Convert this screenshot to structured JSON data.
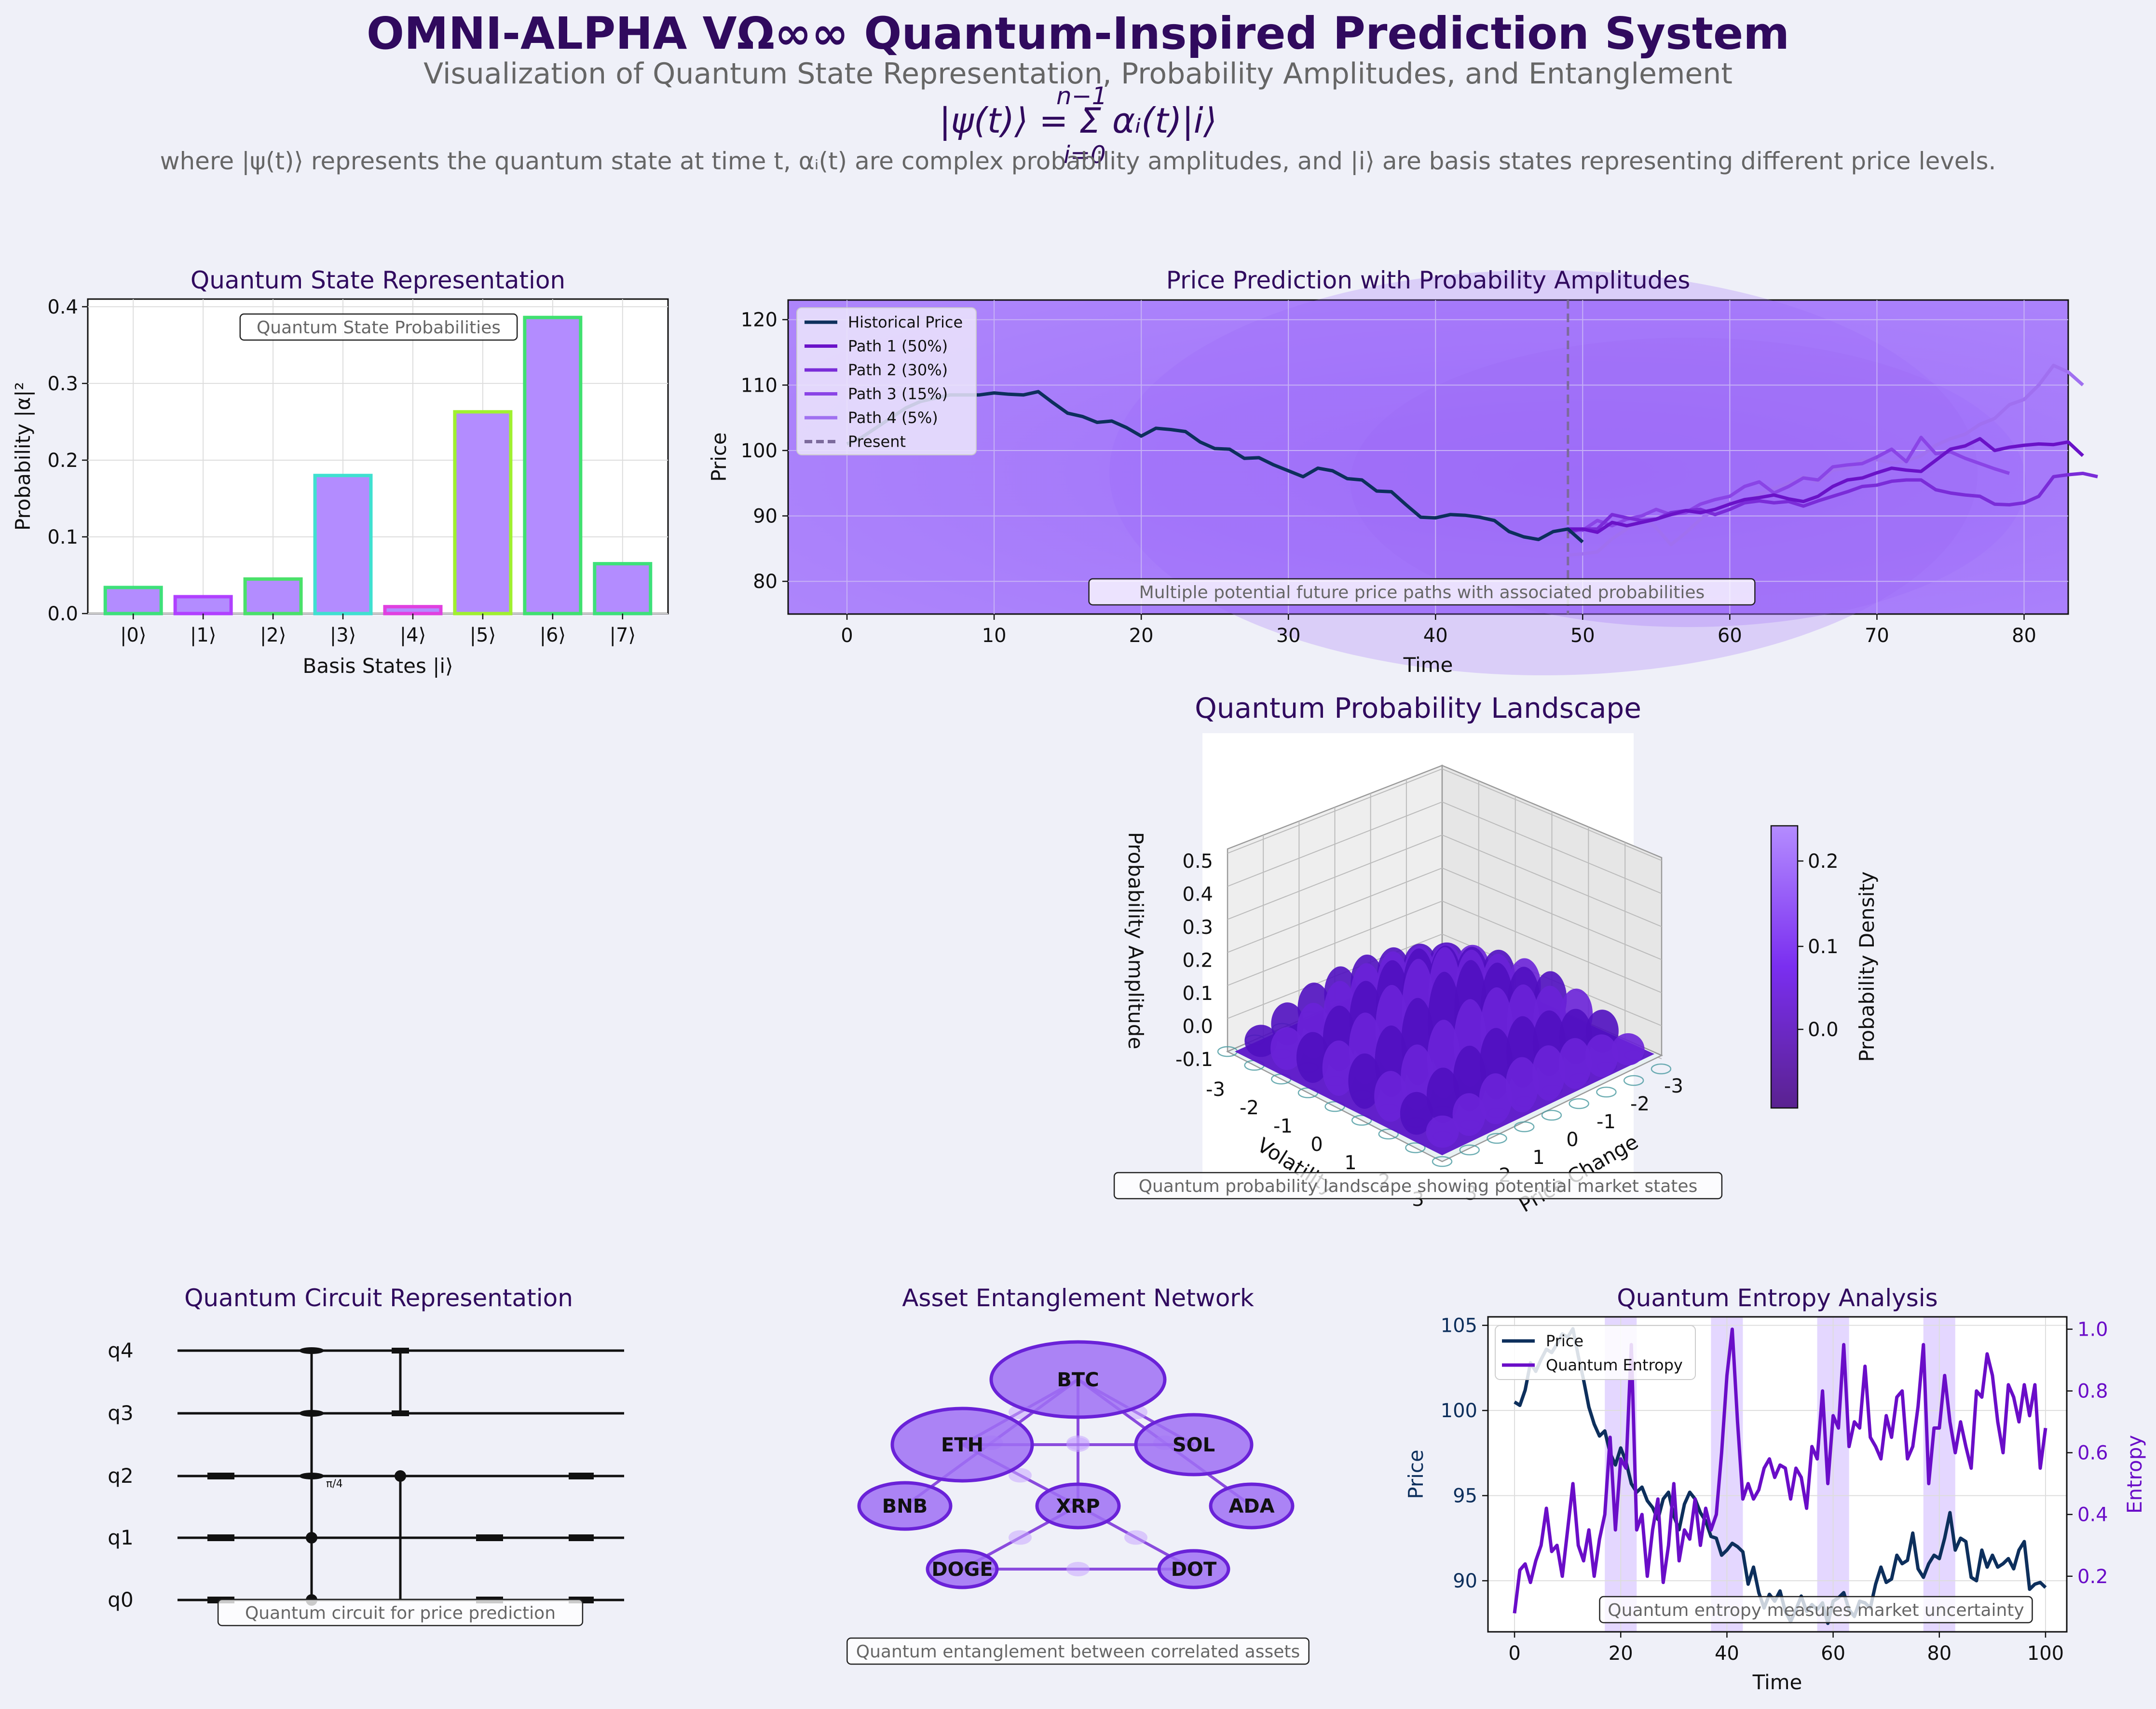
{
  "header": {
    "title": "OMNI-ALPHA VΩ∞∞ Quantum-Inspired Prediction System",
    "subtitle": "Visualization of Quantum State Representation, Probability Amplitudes, and Entanglement",
    "equation": "|ψ(t)⟩ = Σ αᵢ(t)|i⟩",
    "equation_upper": "n−1",
    "equation_lower": "i=0",
    "description": "where |ψ(t)⟩ represents the quantum state at time t, αᵢ(t) are complex probability amplitudes, and |i⟩ are basis states representing different price levels."
  },
  "colors": {
    "title": "#300a5e",
    "grey_text": "#666666",
    "bar_fill": "#b38cff",
    "purple": "#6a0dc8",
    "historical": "#0d2f5c",
    "surface": "#5b14c8",
    "background": "#eff0f8"
  },
  "chart_data": [
    {
      "id": "state",
      "type": "bar",
      "title": "Quantum State Representation",
      "xlabel": "Basis States |i⟩",
      "ylabel": "Probability |α|²",
      "categories": [
        "|0⟩",
        "|1⟩",
        "|2⟩",
        "|3⟩",
        "|4⟩",
        "|5⟩",
        "|6⟩",
        "|7⟩"
      ],
      "values": [
        0.034,
        0.022,
        0.045,
        0.18,
        0.009,
        0.263,
        0.386,
        0.065
      ],
      "edge_colors": [
        "#3ee07a",
        "#b040ff",
        "#4ae06a",
        "#40e0d0",
        "#e040e0",
        "#a0f030",
        "#40e070",
        "#3ee07a"
      ],
      "ylim": [
        0,
        0.41
      ],
      "yticks": [
        "0.0",
        "0.1",
        "0.2",
        "0.3",
        "0.4"
      ],
      "annotation": "Quantum State Probabilities",
      "grid": true
    },
    {
      "id": "prediction",
      "type": "line",
      "title": "Price Prediction with Probability Amplitudes",
      "xlabel": "Time",
      "ylabel": "Price",
      "xlim": [
        -4,
        83
      ],
      "ylim": [
        75,
        123
      ],
      "xticks": [
        "0",
        "10",
        "20",
        "30",
        "40",
        "50",
        "60",
        "70",
        "80"
      ],
      "yticks": [
        "80",
        "90",
        "100",
        "110",
        "120"
      ],
      "present": 49,
      "annotation": "Multiple potential future price paths with associated probabilities",
      "legend": [
        "Historical Price",
        "Path 1 (50%)",
        "Path 2 (30%)",
        "Path 3 (15%)",
        "Path 4 (5%)",
        "Present"
      ],
      "legend_position": "upper-left",
      "series": [
        {
          "name": "Historical Price",
          "color": "#0d2f5c",
          "x0": 0,
          "values": [
            101,
            102,
            103.5,
            105,
            106.5,
            107.5,
            108,
            108.5,
            108.5,
            108.5,
            108.8,
            108.6,
            108.5,
            109,
            107.3,
            105.7,
            105.2,
            104.3,
            104.5,
            103.5,
            102.2,
            103.4,
            103.2,
            102.9,
            101.3,
            100.3,
            100.2,
            98.8,
            98.9,
            97.8,
            96.9,
            96,
            97.3,
            96.9,
            95.7,
            95.5,
            93.8,
            93.7,
            91.7,
            89.8,
            89.7,
            90.2,
            90.1,
            89.8,
            89.3,
            87.6,
            86.8,
            86.4,
            87.6,
            88,
            86
          ]
        },
        {
          "name": "Path 1 (50%)",
          "color": "#6a12c8",
          "x0": 49,
          "values": [
            88,
            88,
            87.5,
            89,
            88.5,
            89,
            89.5,
            90.2,
            90.8,
            90.5,
            91,
            91.8,
            92.5,
            92.8,
            93.2,
            92.6,
            92.2,
            93,
            94.5,
            95.5,
            95.8,
            96.6,
            97.3,
            97,
            96.8,
            98.5,
            100.2,
            100.7,
            101.8,
            100,
            100.5,
            100.8,
            101,
            100.9,
            101.3,
            99.2
          ]
        },
        {
          "name": "Path 2 (30%)",
          "color": "#7a2cd8",
          "x0": 49,
          "values": [
            87.5,
            88,
            88,
            90.2,
            89.7,
            89.3,
            89.5,
            90.5,
            90.8,
            91,
            90.2,
            91,
            92,
            92.3,
            92,
            92.2,
            91.5,
            92.3,
            93,
            93.7,
            94.5,
            94.7,
            95.3,
            95.5,
            95.5,
            94,
            93.5,
            93.2,
            93,
            91.8,
            91.7,
            92,
            93,
            96,
            96.3,
            96.5,
            96
          ]
        },
        {
          "name": "Path 3 (15%)",
          "color": "#8a44e6",
          "x0": 49,
          "values": [
            88,
            87.8,
            89.3,
            88.5,
            89.5,
            90,
            91,
            90.2,
            90.5,
            91.8,
            92.5,
            93,
            94.5,
            95.2,
            93.5,
            94.5,
            95.8,
            95.5,
            97.5,
            97.8,
            98,
            99,
            100.2,
            98.3,
            102,
            99.5,
            99.8,
            98.8,
            98,
            97.2,
            96.5
          ]
        },
        {
          "name": "Path 4 (5%)",
          "color": "#a070f0",
          "x0": 49,
          "values": [
            84,
            84.2,
            84.5,
            86.5,
            88,
            90,
            88.2,
            85.6,
            87.4,
            89.5,
            91,
            92,
            92.2,
            93.3,
            94.2,
            95,
            96,
            95.2,
            97,
            97.3,
            98.5,
            98.6,
            98.1,
            98.4,
            99.2,
            100.8,
            101.8,
            102.5,
            104,
            104.9,
            107,
            107.8,
            110,
            113,
            112,
            110
          ]
        }
      ]
    },
    {
      "id": "landscape",
      "type": "surface",
      "title": "Quantum Probability Landscape",
      "xlabel": "Volatility",
      "ylabel": "Price Change",
      "zlabel": "Probability Amplitude",
      "zticks": [
        "-0.1",
        "0.0",
        "0.1",
        "0.2",
        "0.3",
        "0.4",
        "0.5"
      ],
      "xticks": [
        "-3",
        "-2",
        "-1",
        "0",
        "1",
        "2",
        "3"
      ],
      "yticks": [
        "-3",
        "-2",
        "-1",
        "0",
        "1",
        "2",
        "3"
      ],
      "colorbar_label": "Probability Density",
      "colorbar_ticks": [
        "0.0",
        "0.1",
        "0.2"
      ],
      "annotation": "Quantum probability landscape showing potential market states"
    },
    {
      "id": "circuit",
      "type": "diagram",
      "title": "Quantum Circuit Representation",
      "qubits": [
        "q4",
        "q3",
        "q2",
        "q1",
        "q0"
      ],
      "gate_label": "π/4",
      "annotation": "Quantum circuit for price prediction"
    },
    {
      "id": "network",
      "type": "network",
      "title": "Asset Entanglement Network",
      "nodes": [
        "BTC",
        "ETH",
        "SOL",
        "BNB",
        "XRP",
        "ADA",
        "DOGE",
        "DOT"
      ],
      "edges": [
        [
          "BTC",
          "ETH"
        ],
        [
          "BTC",
          "SOL"
        ],
        [
          "BTC",
          "BNB"
        ],
        [
          "BTC",
          "XRP"
        ],
        [
          "BTC",
          "ADA"
        ],
        [
          "ETH",
          "SOL"
        ],
        [
          "ETH",
          "XRP"
        ],
        [
          "XRP",
          "DOGE"
        ],
        [
          "XRP",
          "DOT"
        ],
        [
          "DOGE",
          "DOT"
        ]
      ],
      "annotation": "Quantum entanglement between correlated assets"
    },
    {
      "id": "entropy",
      "type": "line",
      "title": "Quantum Entropy Analysis",
      "xlabel": "Time",
      "ylabel": "Price",
      "y2label": "Entropy",
      "xlim": [
        -5,
        104
      ],
      "ylim": [
        87,
        105.5
      ],
      "y2lim": [
        0.02,
        1.04
      ],
      "xticks": [
        "0",
        "20",
        "40",
        "60",
        "80",
        "100"
      ],
      "yticks": [
        "90",
        "95",
        "100",
        "105"
      ],
      "y2ticks": [
        "0.2",
        "0.4",
        "0.6",
        "0.8",
        "1.0"
      ],
      "highlight_ranges": [
        [
          17,
          23
        ],
        [
          37,
          43
        ],
        [
          57,
          63
        ],
        [
          77,
          83
        ]
      ],
      "annotation": "Quantum entropy measures market uncertainty",
      "legend": [
        "Price",
        "Quantum Entropy"
      ],
      "series": [
        {
          "name": "Price",
          "color": "#0d2f5c",
          "axis": "left",
          "values": [
            100.5,
            100.3,
            101.2,
            102.8,
            102.3,
            103,
            103.6,
            103.4,
            103.9,
            104.5,
            104.3,
            104.8,
            103.2,
            101.8,
            100.2,
            99.2,
            98.5,
            98.8,
            97.5,
            96.8,
            97.8,
            97,
            95.7,
            95.2,
            95.5,
            94.7,
            94.3,
            93.6,
            94.8,
            95.2,
            93.8,
            93,
            94.5,
            95.2,
            94.8,
            94,
            93.5,
            92.6,
            92.5,
            91.5,
            91.8,
            92.2,
            92,
            91.7,
            89.8,
            90.8,
            89.3,
            88.4,
            89.2,
            88.8,
            89.4,
            88.2,
            87.6,
            88.3,
            89.1,
            88.2,
            88.6,
            88.3,
            88.7,
            87.5,
            88.8,
            89,
            89.3,
            88.3,
            87.9,
            88.8,
            88.7,
            88.4,
            89.8,
            90.8,
            89.9,
            90.1,
            91.5,
            91,
            91.2,
            92.8,
            90.7,
            90.2,
            91,
            91.5,
            91.3,
            92.5,
            94,
            91.8,
            92.5,
            92.3,
            90.2,
            90,
            91.8,
            90.8,
            91.5,
            90.8,
            91,
            91.3,
            90.7,
            91.8,
            92.3,
            89.5,
            89.8,
            89.9,
            89.6
          ]
        },
        {
          "name": "Quantum Entropy",
          "color": "#6a0dc8",
          "axis": "right",
          "values": [
            0.08,
            0.22,
            0.24,
            0.18,
            0.25,
            0.3,
            0.42,
            0.28,
            0.3,
            0.2,
            0.35,
            0.5,
            0.3,
            0.25,
            0.35,
            0.2,
            0.32,
            0.4,
            0.65,
            0.35,
            0.58,
            0.55,
            0.95,
            0.35,
            0.4,
            0.2,
            0.35,
            0.45,
            0.18,
            0.3,
            0.5,
            0.25,
            0.35,
            0.32,
            0.45,
            0.3,
            0.42,
            0.35,
            0.4,
            0.6,
            0.85,
            1.0,
            0.7,
            0.45,
            0.5,
            0.45,
            0.48,
            0.55,
            0.58,
            0.52,
            0.56,
            0.55,
            0.45,
            0.55,
            0.52,
            0.42,
            0.62,
            0.58,
            0.8,
            0.5,
            0.72,
            0.68,
            0.95,
            0.62,
            0.7,
            0.68,
            0.88,
            0.65,
            0.62,
            0.58,
            0.72,
            0.65,
            0.78,
            0.8,
            0.58,
            0.62,
            0.75,
            0.95,
            0.5,
            0.68,
            0.68,
            0.85,
            0.7,
            0.6,
            0.7,
            0.62,
            0.55,
            0.8,
            0.78,
            0.92,
            0.85,
            0.7,
            0.6,
            0.82,
            0.78,
            0.7,
            0.82,
            0.72,
            0.82,
            0.55,
            0.68
          ]
        }
      ]
    }
  ]
}
